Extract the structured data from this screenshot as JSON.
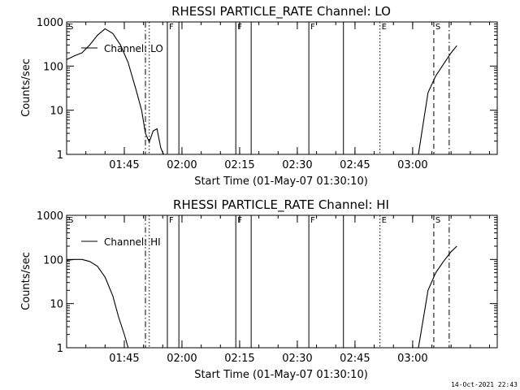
{
  "footer": {
    "timestamp": "14-Oct-2021 22:43"
  },
  "chart_data": [
    {
      "type": "line",
      "title": "RHESSI PARTICLE_RATE Channel: LO",
      "xlabel": "Start Time (01-May-07 01:30:10)",
      "ylabel": "Counts/sec",
      "yscale": "log",
      "ylim": [
        1,
        1000
      ],
      "xlim_minutes": [
        0,
        112
      ],
      "x_ticks": [
        {
          "t": 15,
          "label": "01:45"
        },
        {
          "t": 30,
          "label": "02:00"
        },
        {
          "t": 45,
          "label": "02:15"
        },
        {
          "t": 60,
          "label": "02:30"
        },
        {
          "t": 75,
          "label": "02:45"
        },
        {
          "t": 90,
          "label": "03:00"
        }
      ],
      "y_ticks": [
        {
          "v": 1,
          "label": "1"
        },
        {
          "v": 10,
          "label": "10"
        },
        {
          "v": 100,
          "label": "100"
        },
        {
          "v": 1000,
          "label": "1000"
        }
      ],
      "legend": {
        "label": "Channel: LO",
        "placement": "top-left"
      },
      "series": [
        {
          "name": "Channel: LO",
          "segments": [
            [
              [
                0,
                140
              ],
              [
                2,
                170
              ],
              [
                4,
                200
              ],
              [
                6,
                300
              ],
              [
                8,
                500
              ],
              [
                10,
                700
              ],
              [
                12,
                550
              ],
              [
                14,
                300
              ],
              [
                16,
                120
              ],
              [
                18,
                30
              ],
              [
                19.5,
                10
              ],
              [
                20.5,
                3
              ],
              [
                21.5,
                1.9
              ],
              [
                22.5,
                3.4
              ],
              [
                23.5,
                3.8
              ],
              [
                24.5,
                1.4
              ],
              [
                25.2,
                1
              ]
            ],
            [
              [
                91.5,
                1
              ],
              [
                93,
                7
              ],
              [
                94,
                25
              ],
              [
                96,
                60
              ],
              [
                98,
                110
              ],
              [
                100,
                200
              ],
              [
                101.5,
                290
              ]
            ]
          ]
        }
      ],
      "markers": [
        {
          "t": 0,
          "label": "S",
          "style": "dashed"
        },
        {
          "t": 20.5,
          "label": "",
          "style": "dashdot"
        },
        {
          "t": 21.5,
          "label": "",
          "style": "dotted"
        },
        {
          "t": 26.2,
          "label": "F",
          "style": "solid"
        },
        {
          "t": 29.2,
          "label": "",
          "style": "solid"
        },
        {
          "t": 44,
          "label": "F",
          "style": "solid"
        },
        {
          "t": 48,
          "label": "",
          "style": "solid"
        },
        {
          "t": 63,
          "label": "F",
          "style": "solid"
        },
        {
          "t": 72,
          "label": "",
          "style": "solid"
        },
        {
          "t": 81.5,
          "label": "E",
          "style": "dotted"
        },
        {
          "t": 95.5,
          "label": "S",
          "style": "dashed"
        },
        {
          "t": 99.5,
          "label": "",
          "style": "dashdot"
        }
      ]
    },
    {
      "type": "line",
      "title": "RHESSI PARTICLE_RATE Channel: HI",
      "xlabel": "Start Time (01-May-07 01:30:10)",
      "ylabel": "Counts/sec",
      "yscale": "log",
      "ylim": [
        1,
        1000
      ],
      "xlim_minutes": [
        0,
        112
      ],
      "x_ticks": [
        {
          "t": 15,
          "label": "01:45"
        },
        {
          "t": 30,
          "label": "02:00"
        },
        {
          "t": 45,
          "label": "02:15"
        },
        {
          "t": 60,
          "label": "02:30"
        },
        {
          "t": 75,
          "label": "02:45"
        },
        {
          "t": 90,
          "label": "03:00"
        }
      ],
      "y_ticks": [
        {
          "v": 1,
          "label": "1"
        },
        {
          "v": 10,
          "label": "10"
        },
        {
          "v": 100,
          "label": "100"
        },
        {
          "v": 1000,
          "label": "1000"
        }
      ],
      "legend": {
        "label": "Channel: HI",
        "placement": "top-left"
      },
      "series": [
        {
          "name": "Channel: HI",
          "segments": [
            [
              [
                0,
                95
              ],
              [
                2,
                100
              ],
              [
                4,
                100
              ],
              [
                6,
                90
              ],
              [
                8,
                70
              ],
              [
                10,
                40
              ],
              [
                12,
                15
              ],
              [
                13.5,
                5
              ],
              [
                15,
                2
              ],
              [
                16,
                1
              ]
            ],
            [
              [
                91.5,
                1
              ],
              [
                93,
                6
              ],
              [
                94,
                20
              ],
              [
                96,
                50
              ],
              [
                98,
                90
              ],
              [
                100,
                150
              ],
              [
                101.5,
                200
              ]
            ]
          ]
        }
      ],
      "markers": [
        {
          "t": 0,
          "label": "S",
          "style": "dashed"
        },
        {
          "t": 20.5,
          "label": "",
          "style": "dashdot"
        },
        {
          "t": 21.5,
          "label": "",
          "style": "dotted"
        },
        {
          "t": 26.2,
          "label": "F",
          "style": "solid"
        },
        {
          "t": 29.2,
          "label": "",
          "style": "solid"
        },
        {
          "t": 44,
          "label": "F",
          "style": "solid"
        },
        {
          "t": 48,
          "label": "",
          "style": "solid"
        },
        {
          "t": 63,
          "label": "F",
          "style": "solid"
        },
        {
          "t": 72,
          "label": "",
          "style": "solid"
        },
        {
          "t": 81.5,
          "label": "E",
          "style": "dotted"
        },
        {
          "t": 95.5,
          "label": "S",
          "style": "dashed"
        },
        {
          "t": 99.5,
          "label": "",
          "style": "dashdot"
        }
      ]
    }
  ]
}
